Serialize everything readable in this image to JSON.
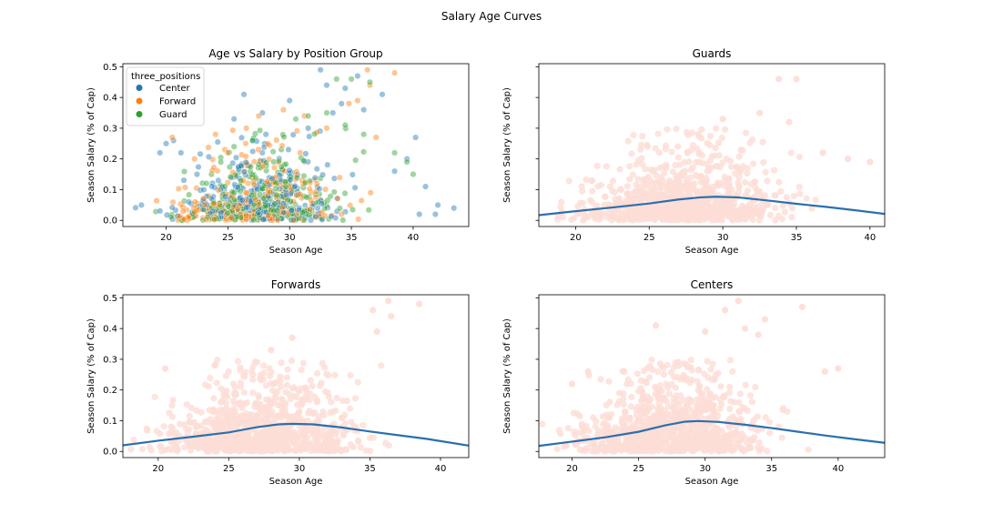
{
  "figure": {
    "suptitle": "Salary Age Curves"
  },
  "chart_data": [
    {
      "type": "scatter",
      "title": "Age vs Salary by Position Group",
      "xlabel": "Season Age",
      "ylabel": "Season Salary (% of Cap)",
      "xlim": [
        16.5,
        44.5
      ],
      "ylim": [
        -0.02,
        0.51
      ],
      "xticks": [
        20,
        25,
        30,
        35,
        40
      ],
      "yticks": [
        0.0,
        0.1,
        0.2,
        0.3,
        0.4,
        0.5
      ],
      "xtick_labels": [
        "20",
        "25",
        "30",
        "35",
        "40"
      ],
      "ytick_labels": [
        "0.0",
        "0.1",
        "0.2",
        "0.3",
        "0.4",
        "0.5"
      ],
      "legend": {
        "title": "three_positions",
        "placement": "upper-left",
        "entries": [
          "Center",
          "Forward",
          "Guard"
        ]
      },
      "series": [
        {
          "name": "Center",
          "color": "#1f77b4",
          "peak_age": 29.5,
          "peak": 0.1,
          "points": [
            [
              26.3,
              0.41
            ],
            [
              30.0,
              0.39
            ],
            [
              32.5,
              0.49
            ],
            [
              33.0,
              0.44
            ],
            [
              34.5,
              0.43
            ],
            [
              35.5,
              0.47
            ],
            [
              37.5,
              0.41
            ],
            [
              36.0,
              0.36
            ],
            [
              34.2,
              0.38
            ],
            [
              40.2,
              0.27
            ],
            [
              41.0,
              0.11
            ],
            [
              42.0,
              0.05
            ],
            [
              43.3,
              0.04
            ],
            [
              41.8,
              0.02
            ],
            [
              20.0,
              0.25
            ],
            [
              20.6,
              0.26
            ],
            [
              21.2,
              0.22
            ],
            [
              19.5,
              0.22
            ],
            [
              25.5,
              0.33
            ],
            [
              31.5,
              0.3
            ],
            [
              33.5,
              0.35
            ],
            [
              27.8,
              0.35
            ],
            [
              38.5,
              0.16
            ],
            [
              39.5,
              0.2
            ],
            [
              40.5,
              0.02
            ],
            [
              18.0,
              0.05
            ],
            [
              22.5,
              0.15
            ]
          ]
        },
        {
          "name": "Forward",
          "color": "#ff7f0e",
          "peak_age": 29.5,
          "peak": 0.09,
          "points": [
            [
              36.3,
              0.49
            ],
            [
              38.5,
              0.48
            ],
            [
              36.5,
              0.44
            ],
            [
              29.5,
              0.36
            ],
            [
              24.0,
              0.28
            ],
            [
              20.5,
              0.27
            ],
            [
              27.5,
              0.34
            ],
            [
              35.5,
              0.39
            ],
            [
              34.8,
              0.38
            ],
            [
              37.0,
              0.27
            ],
            [
              33.0,
              0.3
            ],
            [
              31.2,
              0.34
            ],
            [
              26.5,
              0.3
            ],
            [
              22.3,
              0.2
            ],
            [
              25.0,
              0.22
            ]
          ]
        },
        {
          "name": "Guard",
          "color": "#2ca02c",
          "peak_age": 29.5,
          "peak": 0.08,
          "points": [
            [
              33.8,
              0.46
            ],
            [
              35.0,
              0.46
            ],
            [
              36.5,
              0.45
            ],
            [
              30.5,
              0.33
            ],
            [
              31.5,
              0.34
            ],
            [
              33.0,
              0.35
            ],
            [
              38.5,
              0.22
            ],
            [
              39.5,
              0.19
            ],
            [
              40.0,
              0.15
            ],
            [
              25.5,
              0.24
            ],
            [
              27.0,
              0.26
            ],
            [
              34.5,
              0.31
            ],
            [
              36.0,
              0.28
            ]
          ]
        }
      ]
    },
    {
      "type": "scatter",
      "title": "Guards",
      "xlabel": "Season Age",
      "ylabel": "Season Salary (% of Cap)",
      "xlim": [
        17.5,
        41.0
      ],
      "ylim": [
        -0.02,
        0.51
      ],
      "xticks": [
        20,
        25,
        30,
        35,
        40
      ],
      "xtick_labels": [
        "20",
        "25",
        "30",
        "35",
        "40"
      ],
      "ytick_labels": [],
      "point_color": "#fdddd6",
      "curve_color": "#2c6fad",
      "curve": {
        "x": [
          17.5,
          20,
          22.5,
          25,
          27,
          28.5,
          29.5,
          31,
          33,
          35,
          37,
          39,
          41
        ],
        "y": [
          0.017,
          0.03,
          0.042,
          0.055,
          0.068,
          0.075,
          0.077,
          0.075,
          0.065,
          0.054,
          0.044,
          0.033,
          0.021
        ]
      },
      "outliers": [
        [
          33.8,
          0.46
        ],
        [
          35.0,
          0.46
        ],
        [
          32.5,
          0.35
        ],
        [
          30.0,
          0.33
        ],
        [
          34.5,
          0.32
        ],
        [
          36.8,
          0.22
        ],
        [
          38.5,
          0.2
        ],
        [
          40.0,
          0.19
        ]
      ]
    },
    {
      "type": "scatter",
      "title": "Forwards",
      "xlabel": "Season Age",
      "ylabel": "Season Salary (% of Cap)",
      "xlim": [
        17.5,
        42.0
      ],
      "ylim": [
        -0.02,
        0.51
      ],
      "xticks": [
        20,
        25,
        30,
        35,
        40
      ],
      "yticks": [
        0.0,
        0.1,
        0.2,
        0.3,
        0.4,
        0.5
      ],
      "xtick_labels": [
        "20",
        "25",
        "30",
        "35",
        "40"
      ],
      "ytick_labels": [
        "0.0",
        "0.1",
        "0.2",
        "0.3",
        "0.4",
        "0.5"
      ],
      "point_color": "#fdddd6",
      "curve_color": "#2c6fad",
      "curve": {
        "x": [
          17.5,
          20,
          22.5,
          25,
          27,
          28.5,
          29.5,
          31,
          33,
          35,
          37,
          39,
          42
        ],
        "y": [
          0.02,
          0.035,
          0.048,
          0.062,
          0.079,
          0.088,
          0.09,
          0.088,
          0.078,
          0.065,
          0.053,
          0.041,
          0.019
        ]
      },
      "outliers": [
        [
          36.3,
          0.49
        ],
        [
          38.5,
          0.48
        ],
        [
          35.2,
          0.46
        ],
        [
          36.5,
          0.44
        ],
        [
          35.5,
          0.39
        ],
        [
          29.5,
          0.37
        ],
        [
          24.0,
          0.28
        ],
        [
          20.5,
          0.27
        ],
        [
          28.0,
          0.33
        ]
      ]
    },
    {
      "type": "scatter",
      "title": "Centers",
      "xlabel": "Season Age",
      "ylabel": "Season Salary (% of Cap)",
      "xlim": [
        17.5,
        43.5
      ],
      "ylim": [
        -0.02,
        0.51
      ],
      "xticks": [
        20,
        25,
        30,
        35,
        40
      ],
      "xtick_labels": [
        "20",
        "25",
        "30",
        "35",
        "40"
      ],
      "ytick_labels": [],
      "point_color": "#fdddd6",
      "curve_color": "#2c6fad",
      "curve": {
        "x": [
          17.5,
          20,
          22.5,
          25,
          27,
          28.5,
          29.5,
          31,
          33,
          35,
          37,
          39,
          41,
          43.5
        ],
        "y": [
          0.018,
          0.032,
          0.046,
          0.064,
          0.085,
          0.097,
          0.099,
          0.096,
          0.087,
          0.076,
          0.064,
          0.052,
          0.041,
          0.028
        ]
      },
      "outliers": [
        [
          32.5,
          0.49
        ],
        [
          26.3,
          0.41
        ],
        [
          31.5,
          0.46
        ],
        [
          34.5,
          0.43
        ],
        [
          37.3,
          0.47
        ],
        [
          33.0,
          0.4
        ],
        [
          34.0,
          0.38
        ],
        [
          30.0,
          0.39
        ],
        [
          40.0,
          0.27
        ],
        [
          39.0,
          0.26
        ],
        [
          21.2,
          0.26
        ],
        [
          20.0,
          0.22
        ]
      ]
    }
  ]
}
